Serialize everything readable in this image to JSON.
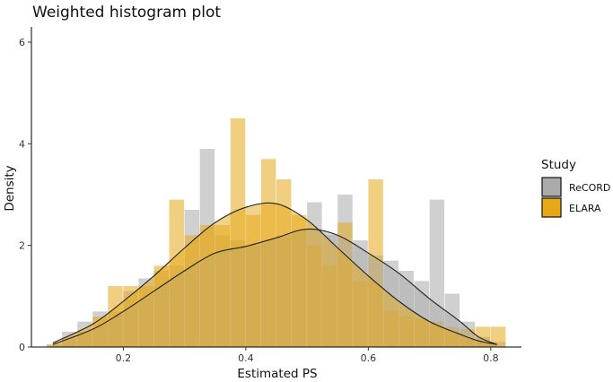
{
  "chart_data": {
    "type": "histogram",
    "title": "Weighted histogram plot",
    "xlabel": "Estimated PS",
    "ylabel": "Density",
    "xlim": [
      0.05,
      0.85
    ],
    "ylim": [
      0,
      6.3
    ],
    "x_ticks": [
      0.2,
      0.4,
      0.6,
      0.8
    ],
    "x_tick_labels": [
      "0.2",
      "0.4",
      "0.6",
      "0.8"
    ],
    "y_ticks": [
      0,
      2,
      4,
      6
    ],
    "y_tick_labels": [
      "0",
      "2",
      "4",
      "6"
    ],
    "bin_width": 0.025,
    "grid": false,
    "legend": {
      "title": "Study",
      "placement": "right",
      "entries": [
        {
          "name": "ReCORD",
          "color": "#aaaaaa"
        },
        {
          "name": "ELARA",
          "color": "#E6A817"
        }
      ]
    },
    "series": [
      {
        "name": "ReCORD",
        "color": "#aaaaaa",
        "bin_centers": [
          0.0875,
          0.1125,
          0.1375,
          0.1625,
          0.1875,
          0.2125,
          0.2375,
          0.2625,
          0.2875,
          0.3125,
          0.3375,
          0.3625,
          0.3875,
          0.4125,
          0.4375,
          0.4625,
          0.4875,
          0.5125,
          0.5375,
          0.5625,
          0.5875,
          0.6125,
          0.6375,
          0.6625,
          0.6875,
          0.7125,
          0.7375,
          0.7625,
          0.7875,
          0.8125
        ],
        "values": [
          0.05,
          0.3,
          0.5,
          0.7,
          0.7,
          1.1,
          1.35,
          1.5,
          1.6,
          2.7,
          3.9,
          2.2,
          2.1,
          2.0,
          2.1,
          2.2,
          2.3,
          2.85,
          2.2,
          3.0,
          2.1,
          1.8,
          1.7,
          1.5,
          1.3,
          2.9,
          1.05,
          0.5,
          0.2,
          0.1
        ],
        "density_x": [
          0.085,
          0.15,
          0.2,
          0.25,
          0.3,
          0.35,
          0.4,
          0.45,
          0.5,
          0.55,
          0.6,
          0.65,
          0.7,
          0.75,
          0.78,
          0.81
        ],
        "density_y": [
          0.05,
          0.35,
          0.7,
          1.1,
          1.5,
          1.85,
          1.98,
          2.15,
          2.32,
          2.2,
          1.85,
          1.45,
          0.95,
          0.5,
          0.2,
          0.05
        ]
      },
      {
        "name": "ELARA",
        "color": "#E6A817",
        "bin_centers": [
          0.0875,
          0.1125,
          0.1375,
          0.1625,
          0.1875,
          0.2125,
          0.2375,
          0.2625,
          0.2875,
          0.3125,
          0.3375,
          0.3625,
          0.3875,
          0.4125,
          0.4375,
          0.4625,
          0.4875,
          0.5125,
          0.5375,
          0.5625,
          0.5875,
          0.6125,
          0.6375,
          0.6625,
          0.6875,
          0.7125,
          0.7375,
          0.7625,
          0.7875,
          0.8125
        ],
        "values": [
          0.05,
          0.15,
          0.3,
          0.6,
          1.2,
          1.2,
          1.2,
          1.6,
          2.9,
          2.2,
          2.4,
          2.4,
          4.5,
          2.6,
          3.7,
          3.3,
          2.6,
          2.0,
          1.6,
          2.45,
          1.3,
          3.3,
          0.7,
          0.6,
          0.55,
          0.5,
          0.4,
          0.35,
          0.4,
          0.4
        ],
        "density_x": [
          0.085,
          0.15,
          0.2,
          0.25,
          0.3,
          0.35,
          0.4,
          0.45,
          0.5,
          0.55,
          0.6,
          0.65,
          0.7,
          0.75,
          0.78,
          0.81
        ],
        "density_y": [
          0.08,
          0.45,
          0.9,
          1.4,
          1.95,
          2.45,
          2.75,
          2.82,
          2.5,
          1.95,
          1.4,
          0.9,
          0.5,
          0.25,
          0.12,
          0.05
        ]
      }
    ]
  }
}
